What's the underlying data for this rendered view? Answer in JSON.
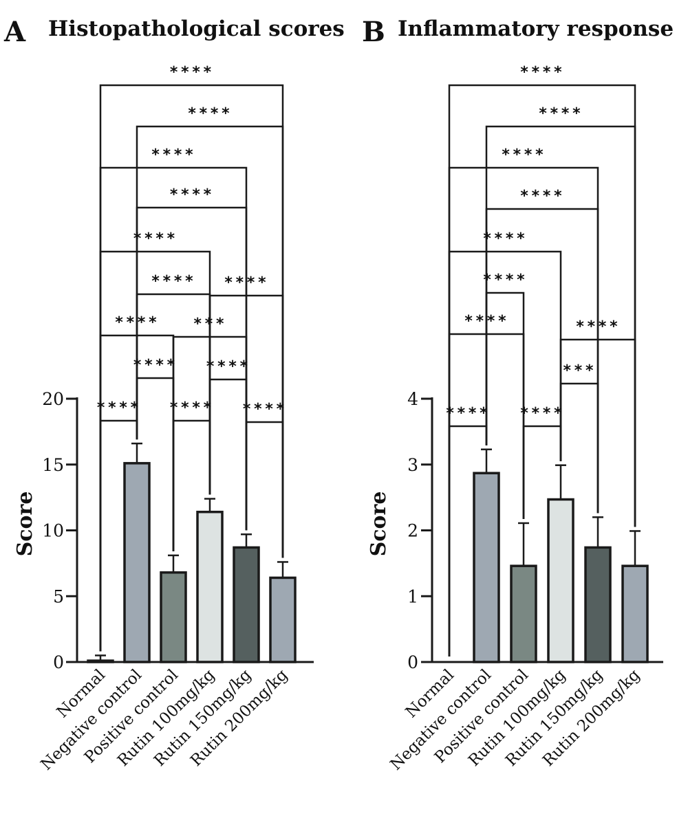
{
  "colors": {
    "Normal": "#9ea8b2",
    "Negative control": "#9ea8b2",
    "Positive control": "#7a8883",
    "Rutin 100mg/kg": "#dde3e2",
    "Rutin 150mg/kg": "#55605f",
    "Rutin 200mg/kg": "#9ea8b2",
    "outline": "#1a1a1a"
  },
  "chart_data": [
    {
      "type": "bar",
      "panel": "A",
      "title": "Histopathological scores",
      "xlabel": "",
      "ylabel": "Score",
      "ylim": [
        0,
        20
      ],
      "yticks": [
        "0",
        "5",
        "10",
        "15",
        "20"
      ],
      "categories": [
        "Normal",
        "Negative control",
        "Positive control",
        "Rutin 100mg/kg",
        "Rutin 150mg/kg",
        "Rutin 200mg/kg"
      ],
      "values": [
        0.1,
        15.1,
        6.8,
        11.4,
        8.7,
        6.4
      ],
      "errors": [
        0.4,
        1.5,
        1.3,
        1.0,
        1.0,
        1.2
      ],
      "comparisons": [
        {
          "from": 0,
          "to": 5,
          "label": "****"
        },
        {
          "from": 1,
          "to": 5,
          "label": "****"
        },
        {
          "from": 0,
          "to": 4,
          "label": "****"
        },
        {
          "from": 1,
          "to": 4,
          "label": "****"
        },
        {
          "from": 0,
          "to": 3,
          "label": "****"
        },
        {
          "from": 1,
          "to": 3,
          "label": "****"
        },
        {
          "from": 3,
          "to": 5,
          "label": "****"
        },
        {
          "from": 0,
          "to": 2,
          "label": "****"
        },
        {
          "from": 2,
          "to": 4,
          "label": "***"
        },
        {
          "from": 1,
          "to": 2,
          "label": "****"
        },
        {
          "from": 3,
          "to": 4,
          "label": "****"
        },
        {
          "from": 0,
          "to": 1,
          "label": "****"
        },
        {
          "from": 2,
          "to": 3,
          "label": "****"
        },
        {
          "from": 4,
          "to": 5,
          "label": "****"
        }
      ]
    },
    {
      "type": "bar",
      "panel": "B",
      "title": "Inflammatory response",
      "xlabel": "",
      "ylabel": "Score",
      "ylim": [
        0,
        4
      ],
      "yticks": [
        "0",
        "1",
        "2",
        "3",
        "4"
      ],
      "categories": [
        "Normal",
        "Negative control",
        "Positive control",
        "Rutin 100mg/kg",
        "Rutin 150mg/kg",
        "Rutin 200mg/kg"
      ],
      "values": [
        0,
        2.87,
        1.46,
        2.47,
        1.74,
        1.46
      ],
      "errors": [
        0,
        0.36,
        0.65,
        0.52,
        0.46,
        0.53
      ],
      "comparisons": [
        {
          "from": 0,
          "to": 5,
          "label": "****"
        },
        {
          "from": 1,
          "to": 5,
          "label": "****"
        },
        {
          "from": 0,
          "to": 4,
          "label": "****"
        },
        {
          "from": 1,
          "to": 4,
          "label": "****"
        },
        {
          "from": 0,
          "to": 3,
          "label": "****"
        },
        {
          "from": 1,
          "to": 2,
          "label": "****"
        },
        {
          "from": 0,
          "to": 2,
          "label": "****"
        },
        {
          "from": 3,
          "to": 5,
          "label": "****"
        },
        {
          "from": 3,
          "to": 4,
          "label": "***"
        },
        {
          "from": 0,
          "to": 1,
          "label": "****"
        },
        {
          "from": 2,
          "to": 3,
          "label": "****"
        }
      ]
    }
  ]
}
